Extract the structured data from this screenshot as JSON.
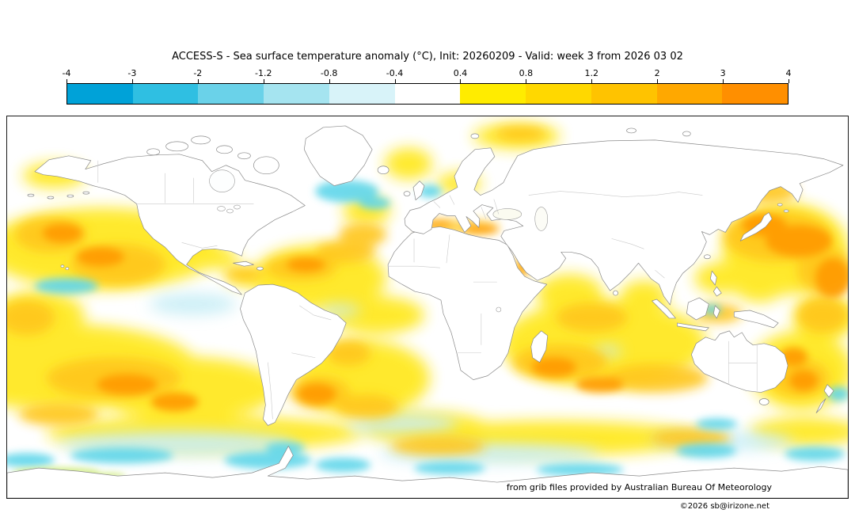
{
  "title": "ACCESS-S - Sea surface temperature anomaly (°C), Init: 20260209 - Valid: week 3 from 2026 03 02",
  "colorbar": {
    "tick_labels": [
      "-4",
      "-3",
      "-2",
      "-1.2",
      "-0.8",
      "-0.4",
      "0.4",
      "0.8",
      "1.2",
      "2",
      "3",
      "4"
    ],
    "segment_colors": [
      "#00a2d8",
      "#2fbfe2",
      "#6ad2e9",
      "#a5e4f0",
      "#d8f3f9",
      "#ffffff",
      "#ffec00",
      "#ffd800",
      "#ffc300",
      "#ffa800",
      "#ff8f00"
    ]
  },
  "footer": {
    "credit": "from grib files provided by Australian Bureau Of Meteorology",
    "copyright": "©2026 sb@irizone.net"
  },
  "chart_data": {
    "type": "heatmap",
    "title": "ACCESS-S - Sea surface temperature anomaly (°C), Init: 20260209 - Valid: week 3 from 2026 03 02",
    "model": "ACCESS-S",
    "variable": "Sea surface temperature anomaly",
    "units": "°C",
    "init_date": "20260209",
    "valid": "week 3 from 2026 03 02",
    "projection": "global equirectangular world map",
    "colorbar_ticks": [
      -4,
      -3,
      -2,
      -1.2,
      -0.8,
      -0.4,
      0.4,
      0.8,
      1.2,
      2,
      3,
      4
    ],
    "colorbar_colors": [
      "#00a2d8",
      "#2fbfe2",
      "#6ad2e9",
      "#a5e4f0",
      "#d8f3f9",
      "#ffffff",
      "#ffec00",
      "#ffd800",
      "#ffc300",
      "#ffa800",
      "#ff8f00"
    ],
    "legend_position": "top, horizontal",
    "notable_regions": [
      {
        "region": "Northwest Pacific east of Japan",
        "anomaly_c": "+2 to +4"
      },
      {
        "region": "Northeast Pacific / Gulf of Alaska",
        "anomaly_c": "+1.2 to +3"
      },
      {
        "region": "Central North Pacific band",
        "anomaly_c": "+0.4 to +1.2"
      },
      {
        "region": "Subtropical North Atlantic",
        "anomaly_c": "+1.2 to +3"
      },
      {
        "region": "Subpolar North Atlantic south of Greenland",
        "anomaly_c": "-0.8 to -2"
      },
      {
        "region": "Mediterranean Sea",
        "anomaly_c": "+1.2 to +3"
      },
      {
        "region": "Barents Sea",
        "anomaly_c": "+0.8 to +2"
      },
      {
        "region": "Equatorial Pacific",
        "anomaly_c": "+0.4 to +1.2"
      },
      {
        "region": "Tropical Indian Ocean",
        "anomaly_c": "+0.4 to +1.2"
      },
      {
        "region": "Southwest Indian Ocean",
        "anomaly_c": "+1.2 to +3"
      },
      {
        "region": "Tasman Sea and around New Zealand",
        "anomaly_c": "+1.2 to +3"
      },
      {
        "region": "South Atlantic off Argentina",
        "anomaly_c": "+1.2 to +3"
      },
      {
        "region": "Southern Ocean patches near Antarctica",
        "anomaly_c": "-0.4 to -2"
      },
      {
        "region": "Land areas",
        "anomaly_c": "no data (white)"
      }
    ]
  }
}
